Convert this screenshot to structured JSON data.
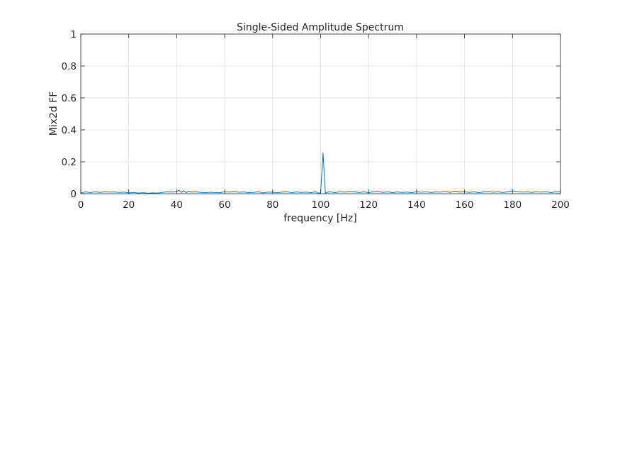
{
  "chart_data": {
    "type": "line",
    "title": "Single-Sided Amplitude Spectrum",
    "xlabel": "frequency [Hz]",
    "ylabel": "Mix2d FF",
    "xlim": [
      0,
      200
    ],
    "ylim": [
      0,
      1
    ],
    "xticks": [
      0,
      20,
      40,
      60,
      80,
      100,
      120,
      140,
      160,
      180,
      200
    ],
    "yticks": [
      0,
      0.2,
      0.4,
      0.6,
      0.8,
      1
    ],
    "xtick_labels": [
      "0",
      "20",
      "40",
      "60",
      "80",
      "100",
      "120",
      "140",
      "160",
      "180",
      "200"
    ],
    "ytick_labels": [
      "0",
      "0.2",
      "0.4",
      "0.6",
      "0.8",
      "1"
    ],
    "grid": true,
    "series": [
      {
        "color": "#0072BD",
        "x": [
          0,
          2,
          4,
          6,
          8,
          10,
          12,
          14,
          16,
          18,
          20,
          22,
          24,
          26,
          28,
          30,
          32,
          34,
          36,
          38,
          40,
          41,
          42,
          43,
          44,
          45,
          46,
          48,
          50,
          52,
          54,
          56,
          58,
          60,
          62,
          64,
          66,
          68,
          70,
          72,
          74,
          76,
          78,
          80,
          82,
          84,
          86,
          88,
          90,
          92,
          94,
          96,
          98,
          99,
          100,
          101,
          102,
          103,
          104,
          106,
          108,
          110,
          112,
          114,
          116,
          118,
          120,
          122,
          124,
          126,
          128,
          130,
          132,
          134,
          136,
          138,
          140,
          142,
          144,
          146,
          148,
          150,
          152,
          154,
          156,
          158,
          160,
          162,
          164,
          166,
          168,
          170,
          172,
          174,
          176,
          178,
          180,
          182,
          184,
          186,
          188,
          190,
          192,
          194,
          196,
          198,
          200
        ],
        "y": [
          0.004,
          0.012,
          0.006,
          0.013,
          0.008,
          0.012,
          0.01,
          0.011,
          0.008,
          0.01,
          0.005,
          0.008,
          0.004,
          0.006,
          0.003,
          0.005,
          0.004,
          0.008,
          0.012,
          0.01,
          0.015,
          0.02,
          0.008,
          0.018,
          0.006,
          0.016,
          0.01,
          0.012,
          0.008,
          0.006,
          0.009,
          0.007,
          0.006,
          0.012,
          0.01,
          0.014,
          0.009,
          0.011,
          0.006,
          0.008,
          0.012,
          0.005,
          0.01,
          0.009,
          0.006,
          0.01,
          0.012,
          0.006,
          0.011,
          0.008,
          0.01,
          0.006,
          0.012,
          0.003,
          0.007,
          0.255,
          0.004,
          0.01,
          0.012,
          0.006,
          0.013,
          0.01,
          0.014,
          0.012,
          0.007,
          0.012,
          0.006,
          0.012,
          0.014,
          0.008,
          0.012,
          0.006,
          0.011,
          0.008,
          0.01,
          0.006,
          0.013,
          0.009,
          0.012,
          0.007,
          0.011,
          0.01,
          0.014,
          0.008,
          0.016,
          0.01,
          0.013,
          0.008,
          0.012,
          0.006,
          0.011,
          0.014,
          0.009,
          0.012,
          0.007,
          0.012,
          0.018,
          0.013,
          0.01,
          0.012,
          0.008,
          0.012,
          0.01,
          0.013,
          0.006,
          0.012,
          0.012
        ]
      }
    ]
  }
}
